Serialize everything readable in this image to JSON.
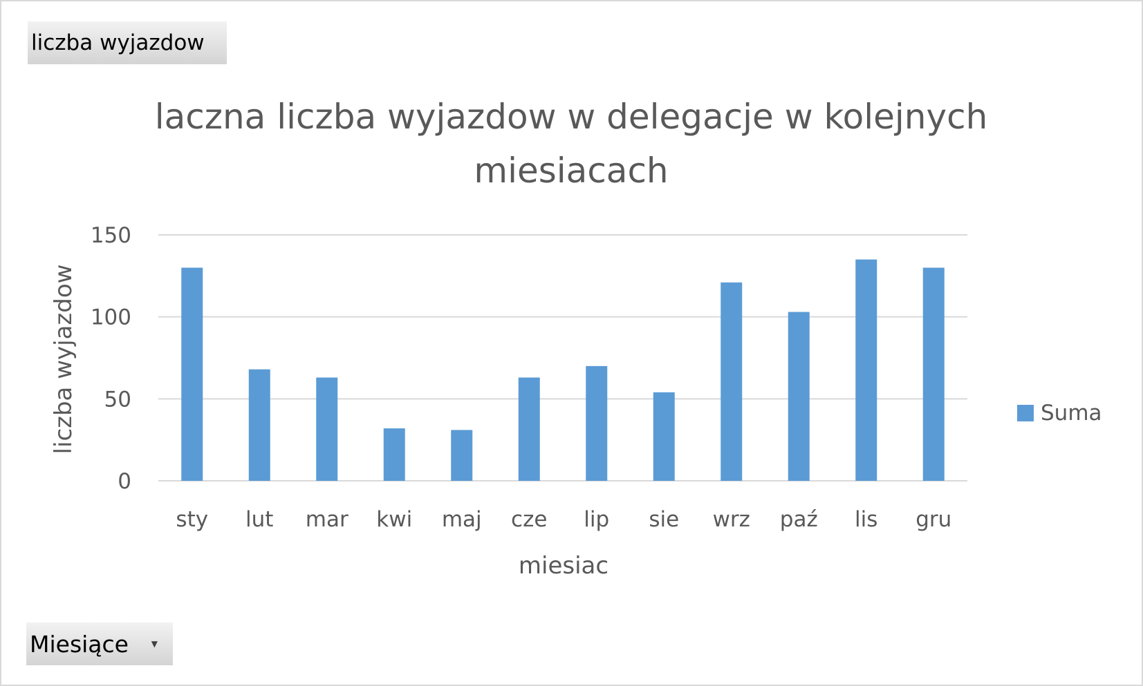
{
  "field_buttons": {
    "values_label": "liczba  wyjazdow",
    "axis_label": "Miesiące",
    "axis_dropdown_icon": "chevron-down-icon"
  },
  "chart_data": {
    "type": "bar",
    "title_lines": [
      "laczna liczba wyjazdow w delegacje w kolejnych",
      "miesiacach"
    ],
    "categories": [
      "sty",
      "lut",
      "mar",
      "kwi",
      "maj",
      "cze",
      "lip",
      "sie",
      "wrz",
      "paź",
      "lis",
      "gru"
    ],
    "series": [
      {
        "name": "Suma",
        "values": [
          130,
          68,
          63,
          32,
          31,
          63,
          70,
          54,
          121,
          103,
          135,
          130
        ],
        "color": "#5b9bd5"
      }
    ],
    "xlabel": "miesiac",
    "ylabel": "liczba wyjazdow",
    "ylim": [
      0,
      150
    ],
    "yticks": [
      0,
      50,
      100,
      150
    ],
    "grid": true,
    "gridline_color": "#d9d9d9",
    "legend_position": "right"
  }
}
